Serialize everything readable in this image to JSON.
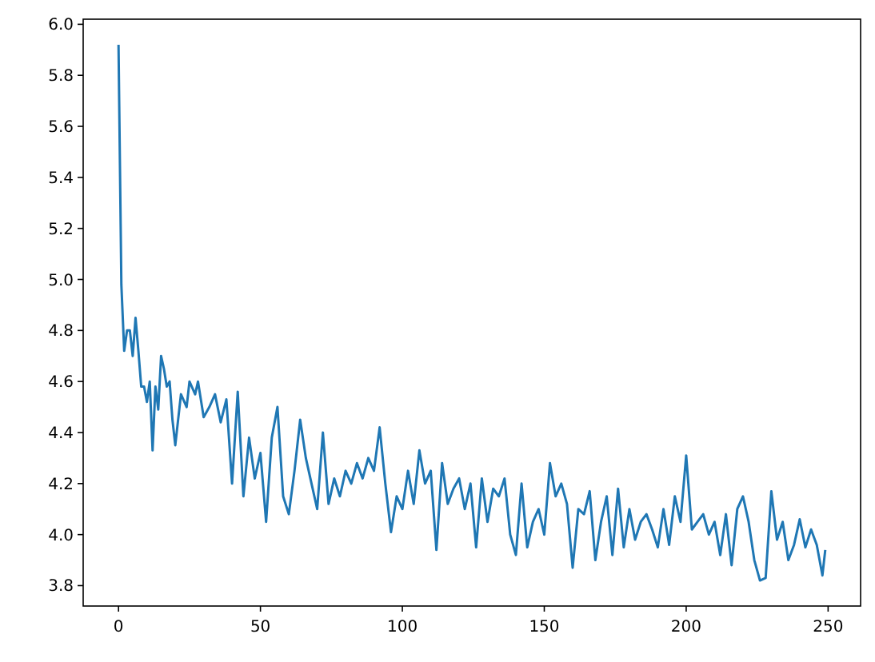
{
  "chart_data": {
    "type": "line",
    "xlim": [
      -12.45,
      261.45
    ],
    "ylim": [
      3.72,
      6.02
    ],
    "xticks": [
      0,
      50,
      100,
      150,
      200,
      250
    ],
    "yticks": [
      {
        "value": 3.8,
        "label": "3.8"
      },
      {
        "value": 4.0,
        "label": "4.0"
      },
      {
        "value": 4.2,
        "label": "4.2"
      },
      {
        "value": 4.4,
        "label": "4.4"
      },
      {
        "value": 4.6,
        "label": "4.6"
      },
      {
        "value": 4.8,
        "label": "4.8"
      },
      {
        "value": 5.0,
        "label": "5.0"
      },
      {
        "value": 5.2,
        "label": "5.2"
      },
      {
        "value": 5.4,
        "label": "5.4"
      },
      {
        "value": 5.6,
        "label": "5.6"
      },
      {
        "value": 5.8,
        "label": "5.8"
      },
      {
        "value": 6.0,
        "label": "6.0"
      }
    ],
    "grid": false,
    "series": [
      {
        "color": "#1f77b4",
        "x": [
          0,
          1,
          2,
          3,
          4,
          5,
          6,
          7,
          8,
          9,
          10,
          11,
          12,
          13,
          14,
          15,
          16,
          17,
          18,
          19,
          20,
          22,
          24,
          25,
          27,
          28,
          30,
          32,
          34,
          36,
          38,
          40,
          42,
          44,
          46,
          48,
          50,
          52,
          54,
          56,
          58,
          60,
          62,
          64,
          66,
          68,
          70,
          72,
          74,
          76,
          78,
          80,
          82,
          84,
          86,
          88,
          90,
          92,
          94,
          96,
          98,
          100,
          102,
          104,
          106,
          108,
          110,
          112,
          114,
          116,
          118,
          120,
          122,
          124,
          126,
          128,
          130,
          132,
          134,
          136,
          138,
          140,
          142,
          144,
          146,
          148,
          150,
          152,
          154,
          156,
          158,
          160,
          162,
          164,
          166,
          168,
          170,
          172,
          174,
          176,
          178,
          180,
          182,
          184,
          186,
          188,
          190,
          192,
          194,
          196,
          198,
          200,
          202,
          204,
          206,
          208,
          210,
          212,
          214,
          216,
          218,
          220,
          222,
          224,
          226,
          228,
          230,
          232,
          234,
          236,
          238,
          240,
          242,
          244,
          246,
          248,
          249
        ],
        "values": [
          5.92,
          4.98,
          4.72,
          4.8,
          4.8,
          4.7,
          4.85,
          4.72,
          4.58,
          4.58,
          4.52,
          4.6,
          4.33,
          4.58,
          4.49,
          4.7,
          4.65,
          4.58,
          4.6,
          4.45,
          4.35,
          4.55,
          4.5,
          4.6,
          4.55,
          4.6,
          4.46,
          4.5,
          4.55,
          4.44,
          4.53,
          4.2,
          4.56,
          4.15,
          4.38,
          4.22,
          4.32,
          4.05,
          4.38,
          4.5,
          4.15,
          4.08,
          4.25,
          4.45,
          4.3,
          4.2,
          4.1,
          4.4,
          4.12,
          4.22,
          4.15,
          4.25,
          4.2,
          4.28,
          4.22,
          4.3,
          4.25,
          4.42,
          4.2,
          4.01,
          4.15,
          4.1,
          4.25,
          4.12,
          4.33,
          4.2,
          4.25,
          3.94,
          4.28,
          4.12,
          4.18,
          4.22,
          4.1,
          4.2,
          3.95,
          4.22,
          4.05,
          4.18,
          4.15,
          4.22,
          4.0,
          3.92,
          4.2,
          3.95,
          4.05,
          4.1,
          4.0,
          4.28,
          4.15,
          4.2,
          4.12,
          3.87,
          4.1,
          4.08,
          4.17,
          3.9,
          4.05,
          4.15,
          3.92,
          4.18,
          3.95,
          4.1,
          3.98,
          4.05,
          4.08,
          4.02,
          3.95,
          4.1,
          3.96,
          4.15,
          4.05,
          4.31,
          4.02,
          4.05,
          4.08,
          4.0,
          4.05,
          3.92,
          4.08,
          3.88,
          4.1,
          4.15,
          4.05,
          3.9,
          3.82,
          3.83,
          4.17,
          3.98,
          4.05,
          3.9,
          3.96,
          4.06,
          3.95,
          4.02,
          3.96,
          3.84,
          3.94
        ]
      }
    ]
  }
}
